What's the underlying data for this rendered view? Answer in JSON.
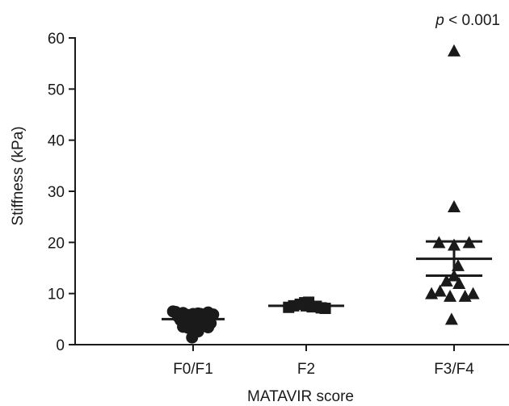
{
  "chart_data": {
    "type": "scatter",
    "xlabel": "MATAVIR score",
    "ylabel": "Stiffness (kPa)",
    "ylim": [
      0,
      60
    ],
    "yticks": [
      0,
      10,
      20,
      30,
      40,
      50,
      60
    ],
    "categories": [
      "F0/F1",
      "F2",
      "F3/F4"
    ],
    "annotation": {
      "p_italic": "p",
      "p_rest": " < 0.001"
    },
    "series": [
      {
        "category": "F0/F1",
        "marker": "circle",
        "values": [
          6.5,
          5.5,
          6.2,
          5.8,
          6.0,
          6.1,
          5.7,
          6.3,
          5.9,
          6.4,
          6.0,
          5.6,
          4.8,
          4.3,
          4.6,
          4.0,
          4.5,
          4.4,
          4.2,
          3.5,
          3.3,
          2.6,
          3.4,
          1.4
        ],
        "offsets": [
          -0.4,
          -0.3,
          -0.2,
          -0.1,
          0.0,
          0.1,
          0.2,
          0.3,
          0.4,
          -0.35,
          0.15,
          0.25,
          -0.25,
          -0.05,
          0.05,
          0.12,
          -0.15,
          0.22,
          0.35,
          -0.2,
          -0.1,
          0.1,
          0.3,
          -0.02
        ],
        "mean": 5.0,
        "sem": [
          4.6,
          5.4
        ]
      },
      {
        "category": "F2",
        "marker": "square",
        "values": [
          7.3,
          7.6,
          7.9,
          8.2,
          8.3,
          7.4,
          7.5,
          7.2,
          7.1,
          7.6
        ],
        "offsets": [
          -0.35,
          -0.25,
          -0.12,
          -0.03,
          0.05,
          0.12,
          0.2,
          0.3,
          0.38,
          0.0
        ],
        "mean": 7.6,
        "sem": [
          7.4,
          7.9
        ]
      },
      {
        "category": "F3/F4",
        "marker": "triangle",
        "values": [
          57.5,
          27.0,
          20.0,
          20.0,
          19.5,
          15.5,
          13.5,
          12.5,
          12.0,
          10.5,
          10.0,
          10.0,
          9.5,
          9.5,
          5.0
        ],
        "offsets": [
          0.0,
          0.0,
          -0.3,
          0.3,
          0.0,
          0.08,
          0.0,
          -0.15,
          0.1,
          -0.28,
          0.38,
          -0.45,
          -0.08,
          0.22,
          -0.05
        ],
        "mean": 16.8,
        "sem": [
          13.5,
          20.2
        ]
      }
    ]
  }
}
